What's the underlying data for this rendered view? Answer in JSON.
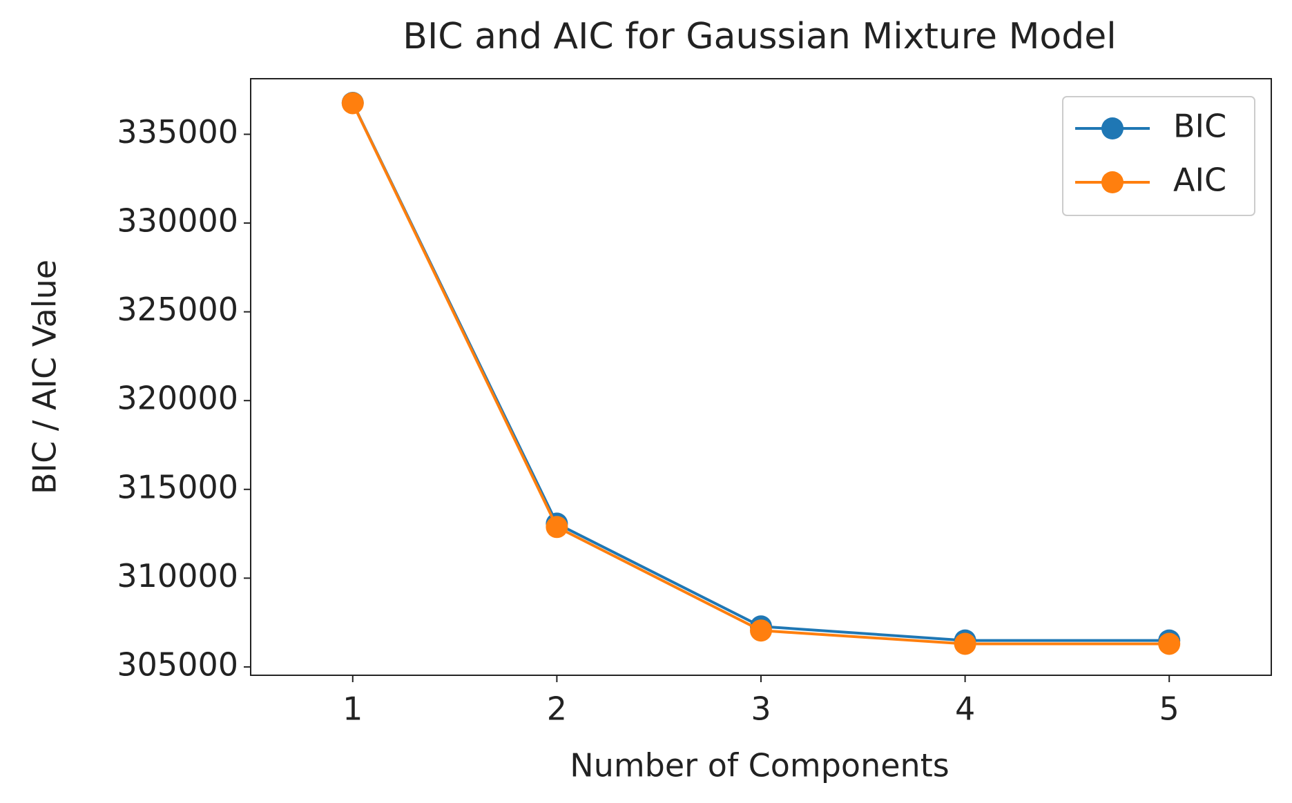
{
  "chart_data": {
    "type": "line",
    "title": "BIC and AIC for Gaussian Mixture Model",
    "x_label": "Number of Components",
    "y_label": "BIC / AIC Value",
    "x": [
      1,
      2,
      3,
      4,
      5
    ],
    "series": [
      {
        "name": "BIC",
        "color": "#1f77b4",
        "values": [
          336770,
          313070,
          307280,
          306490,
          306490
        ]
      },
      {
        "name": "AIC",
        "color": "#ff7f0e",
        "values": [
          336750,
          312880,
          307050,
          306300,
          306300
        ]
      }
    ],
    "xlim": [
      0.5,
      5.5
    ],
    "xticks": [
      1,
      2,
      3,
      4,
      5
    ],
    "ylim": [
      304530,
      338130
    ],
    "yticks": [
      305000,
      310000,
      315000,
      320000,
      325000,
      330000,
      335000
    ],
    "grid": false,
    "legend": "upper right"
  }
}
